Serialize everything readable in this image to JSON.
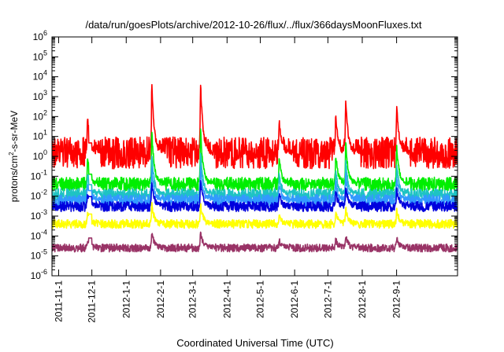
{
  "chart_data": {
    "type": "line",
    "title": "/data/run/goesPlots/archive/2012-10-26/flux/../flux/366daysMoonFluxes.txt",
    "xlabel": "Coordinated Universal Time (UTC)",
    "ylabel_parts": [
      "protons/cm",
      "2",
      "-s-sr-MeV"
    ],
    "y_scale": "log",
    "ylim": [
      1e-06,
      1000000.0
    ],
    "xlim": [
      "2011-10-26",
      "2012-10-26"
    ],
    "grid": false,
    "legend": "none",
    "y_ticks": [
      {
        "value": 1e-06,
        "base": "10",
        "exp": "-6"
      },
      {
        "value": 1e-05,
        "base": "10",
        "exp": "-5"
      },
      {
        "value": 0.0001,
        "base": "10",
        "exp": "-4"
      },
      {
        "value": 0.001,
        "base": "10",
        "exp": "-3"
      },
      {
        "value": 0.01,
        "base": "10",
        "exp": "-2"
      },
      {
        "value": 0.1,
        "base": "10",
        "exp": "-1"
      },
      {
        "value": 1,
        "base": "10",
        "exp": "0"
      },
      {
        "value": 10,
        "base": "10",
        "exp": "1"
      },
      {
        "value": 100,
        "base": "10",
        "exp": "2"
      },
      {
        "value": 1000.0,
        "base": "10",
        "exp": "3"
      },
      {
        "value": 10000.0,
        "base": "10",
        "exp": "4"
      },
      {
        "value": 100000.0,
        "base": "10",
        "exp": "5"
      },
      {
        "value": 1000000.0,
        "base": "10",
        "exp": "6"
      }
    ],
    "x_ticks": [
      {
        "date": "2011-11-01",
        "label": "2011-11-1"
      },
      {
        "date": "2011-12-01",
        "label": "2011-12-1"
      },
      {
        "date": "2012-01-01",
        "label": "2012-1-1"
      },
      {
        "date": "2012-02-01",
        "label": "2012-2-1"
      },
      {
        "date": "2012-03-01",
        "label": "2012-3-1"
      },
      {
        "date": "2012-04-01",
        "label": "2012-4-1"
      },
      {
        "date": "2012-05-01",
        "label": "2012-5-1"
      },
      {
        "date": "2012-06-01",
        "label": "2012-6-1"
      },
      {
        "date": "2012-07-01",
        "label": "2012-7-1"
      },
      {
        "date": "2012-08-01",
        "label": "2012-8-1"
      },
      {
        "date": "2012-09-01",
        "label": "2012-9-1"
      }
    ],
    "events": [
      {
        "date": "2011-11-27",
        "peak": 120
      },
      {
        "date": "2012-01-24",
        "peak": 6000
      },
      {
        "date": "2012-03-08",
        "peak": 8000
      },
      {
        "date": "2012-05-18",
        "peak": 80
      },
      {
        "date": "2012-07-08",
        "peak": 150
      },
      {
        "date": "2012-07-17",
        "peak": 1000
      },
      {
        "date": "2012-09-01",
        "peak": 500
      }
    ],
    "gaps": [
      [
        "2011-11-28",
        "2011-12-01"
      ]
    ],
    "series": [
      {
        "color": "#ff0000",
        "baseline": 1.5,
        "spread": 0.8
      },
      {
        "color": "#00ee00",
        "baseline": 0.04,
        "spread": 0.35
      },
      {
        "color": "#1ec3c3",
        "baseline": 0.012,
        "spread": 0.3
      },
      {
        "color": "#3399ff",
        "baseline": 0.006,
        "spread": 0.3
      },
      {
        "color": "#0000dd",
        "baseline": 0.003,
        "spread": 0.25
      },
      {
        "color": "#ffff00",
        "baseline": 0.0004,
        "spread": 0.22
      },
      {
        "color": "#993366",
        "baseline": 2.5e-05,
        "spread": 0.2
      }
    ]
  }
}
